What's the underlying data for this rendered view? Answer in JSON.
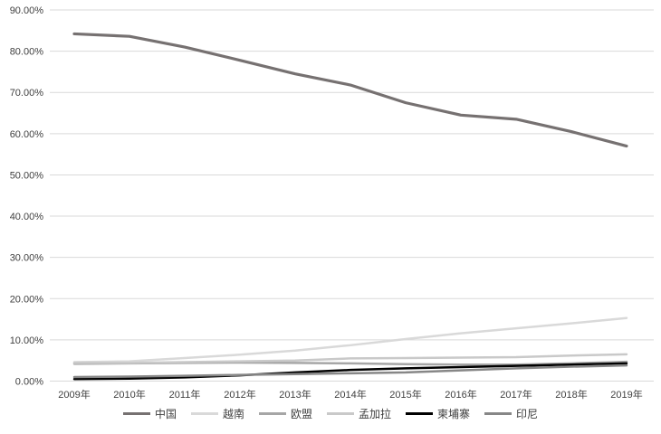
{
  "chart_data": {
    "type": "line",
    "title": "",
    "xlabel": "",
    "ylabel": "",
    "grid": "horizontal",
    "legend_position": "bottom",
    "ylim": [
      0,
      90
    ],
    "ytick_step": 10,
    "y_tick_labels": [
      "0.00%",
      "10.00%",
      "20.00%",
      "30.00%",
      "40.00%",
      "50.00%",
      "60.00%",
      "70.00%",
      "80.00%",
      "90.00%"
    ],
    "categories": [
      "2009年",
      "2010年",
      "2011年",
      "2012年",
      "2013年",
      "2014年",
      "2015年",
      "2016年",
      "2017年",
      "2018年",
      "2019年"
    ],
    "series": [
      {
        "name": "中国",
        "color": "#767171",
        "line_width": 3.2,
        "values": [
          84.2,
          83.6,
          81.0,
          77.8,
          74.5,
          71.8,
          67.5,
          64.5,
          63.5,
          60.5,
          57.0
        ]
      },
      {
        "name": "越南",
        "color": "#d9d9d9",
        "line_width": 2.5,
        "values": [
          4.6,
          4.8,
          5.6,
          6.4,
          7.4,
          8.7,
          10.2,
          11.6,
          12.8,
          14.0,
          15.3
        ]
      },
      {
        "name": "欧盟",
        "color": "#a6a6a6",
        "line_width": 2.5,
        "values": [
          4.2,
          4.3,
          4.4,
          4.5,
          4.4,
          4.3,
          4.1,
          4.0,
          4.0,
          4.3,
          4.7
        ]
      },
      {
        "name": "孟加拉",
        "color": "#c9c9c9",
        "line_width": 2.5,
        "values": [
          4.4,
          4.4,
          4.6,
          4.8,
          5.0,
          5.5,
          5.6,
          5.7,
          5.8,
          6.2,
          6.5
        ]
      },
      {
        "name": "柬埔寨",
        "color": "#000000",
        "line_width": 2.5,
        "values": [
          0.5,
          0.6,
          0.9,
          1.4,
          2.1,
          2.7,
          3.1,
          3.4,
          3.7,
          4.0,
          4.3
        ]
      },
      {
        "name": "印尼",
        "color": "#878787",
        "line_width": 2.5,
        "values": [
          1.0,
          1.1,
          1.3,
          1.5,
          1.7,
          1.9,
          2.1,
          2.6,
          3.1,
          3.5,
          3.8
        ]
      }
    ]
  },
  "style": {
    "gridline_color": "#d9d9d9",
    "axis_text_color": "#3f3f3f",
    "background_color": "#ffffff"
  }
}
